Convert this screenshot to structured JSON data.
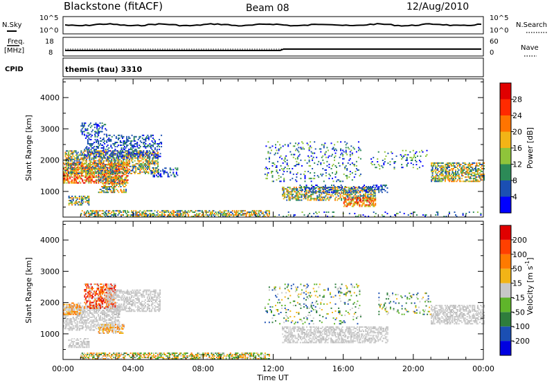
{
  "header": {
    "station": "Blackstone (fitACF)",
    "beam": "Beam 08",
    "date": "12/Aug/2010"
  },
  "status_panels": {
    "nsky_label": "N.Sky",
    "nsearch_label": "N.Search",
    "noise_ticks_left": [
      "10^5",
      "10^0"
    ],
    "noise_ticks_right": [
      "10^5",
      "10^0"
    ],
    "freq_label": "Freq.",
    "freq_unit": "[MHz]",
    "freq_ticks": [
      "18",
      "8"
    ],
    "nave_label": "Nave",
    "nave_ticks": [
      "60",
      "0"
    ],
    "cpid_label": "CPID",
    "cpid_value": "themis (tau) 3310"
  },
  "chart_data": [
    {
      "type": "heatmap",
      "name": "power",
      "ylabel": "Slant Range [km]",
      "xlabel": "Time UT",
      "yticks": [
        "1000",
        "2000",
        "3000",
        "4000"
      ],
      "ylim": [
        180,
        4600
      ],
      "xticks": [
        "00:00",
        "04:00",
        "08:00",
        "12:00",
        "16:00",
        "20:00",
        "00:00"
      ],
      "xlim_hours": [
        0,
        24
      ],
      "colorbar": {
        "label": "Power [dB]",
        "ticks": [
          "4",
          "8",
          "12",
          "16",
          "20",
          "24",
          "28"
        ],
        "colors": [
          "#0000ff",
          "#1b4fb3",
          "#2c8a57",
          "#8fc43a",
          "#f2b416",
          "#ff7400",
          "#ff2a00",
          "#e00000"
        ]
      },
      "regions": [
        {
          "t0": 0.0,
          "t1": 3.7,
          "r0": 1250,
          "r1": 1900,
          "level": "high"
        },
        {
          "t0": 0.1,
          "t1": 5.4,
          "r0": 1550,
          "r1": 2300,
          "level": "mid"
        },
        {
          "t0": 1.2,
          "t1": 5.6,
          "r0": 2050,
          "r1": 2800,
          "level": "low"
        },
        {
          "t0": 1.0,
          "t1": 2.5,
          "r0": 2800,
          "r1": 3200,
          "level": "low"
        },
        {
          "t0": 0.3,
          "t1": 1.5,
          "r0": 550,
          "r1": 850,
          "level": "mid"
        },
        {
          "t0": 2.0,
          "t1": 3.6,
          "r0": 950,
          "r1": 1450,
          "level": "mid"
        },
        {
          "t0": 5.0,
          "t1": 6.5,
          "r0": 1450,
          "r1": 1750,
          "level": "low"
        },
        {
          "t0": 1.0,
          "t1": 11.8,
          "r0": 180,
          "r1": 400,
          "level": "mid"
        },
        {
          "t0": 11.5,
          "t1": 17.0,
          "r0": 1300,
          "r1": 2600,
          "level": "sparse"
        },
        {
          "t0": 12.5,
          "t1": 17.8,
          "r0": 700,
          "r1": 1150,
          "level": "mid"
        },
        {
          "t0": 13.5,
          "t1": 18.5,
          "r0": 950,
          "r1": 1200,
          "level": "low"
        },
        {
          "t0": 16.0,
          "t1": 17.8,
          "r0": 500,
          "r1": 800,
          "level": "high"
        },
        {
          "t0": 17.5,
          "t1": 21.0,
          "r0": 1700,
          "r1": 2300,
          "level": "sparse"
        },
        {
          "t0": 21.0,
          "t1": 24.0,
          "r0": 1300,
          "r1": 1900,
          "level": "mid"
        },
        {
          "t0": 12.0,
          "t1": 24.0,
          "r0": 180,
          "r1": 350,
          "level": "sparse"
        }
      ]
    },
    {
      "type": "heatmap",
      "name": "velocity",
      "ylabel": "Slant Range [km]",
      "xlabel": "Time UT",
      "yticks": [
        "1000",
        "2000",
        "3000",
        "4000"
      ],
      "ylim": [
        180,
        4600
      ],
      "xticks": [
        "00:00",
        "04:00",
        "08:00",
        "12:00",
        "16:00",
        "20:00",
        "00:00"
      ],
      "xlim_hours": [
        0,
        24
      ],
      "colorbar": {
        "label": "Velocity [m s",
        "label_sup": "-1",
        "label_tail": "]",
        "ticks": [
          "200",
          "100",
          "50",
          "15",
          "-15",
          "-50",
          "-100",
          "-200"
        ],
        "colors": [
          "#0000e0",
          "#1b4fb3",
          "#2e7d3c",
          "#5fb52a",
          "#c8c8c8",
          "#f2b416",
          "#ff7a00",
          "#ff4000",
          "#e00000"
        ]
      },
      "regions": [
        {
          "t0": 0.0,
          "t1": 3.2,
          "r0": 1100,
          "r1": 1900,
          "level": "gray"
        },
        {
          "t0": 1.2,
          "t1": 3.0,
          "r0": 1800,
          "r1": 2600,
          "level": "red"
        },
        {
          "t0": 2.5,
          "t1": 5.5,
          "r0": 1700,
          "r1": 2400,
          "level": "gray"
        },
        {
          "t0": 0.0,
          "t1": 1.0,
          "r0": 1600,
          "r1": 2000,
          "level": "orange"
        },
        {
          "t0": 2.0,
          "t1": 3.5,
          "r0": 1000,
          "r1": 1300,
          "level": "orange"
        },
        {
          "t0": 0.3,
          "t1": 1.5,
          "r0": 550,
          "r1": 850,
          "level": "gray"
        },
        {
          "t0": 1.0,
          "t1": 11.8,
          "r0": 180,
          "r1": 400,
          "level": "mixlow"
        },
        {
          "t0": 11.5,
          "t1": 17.0,
          "r0": 1300,
          "r1": 2600,
          "level": "sparse"
        },
        {
          "t0": 12.5,
          "t1": 18.5,
          "r0": 700,
          "r1": 1200,
          "level": "gray"
        },
        {
          "t0": 21.0,
          "t1": 24.0,
          "r0": 1300,
          "r1": 1900,
          "level": "gray"
        },
        {
          "t0": 18.0,
          "t1": 21.0,
          "r0": 1600,
          "r1": 2300,
          "level": "sparse"
        }
      ]
    }
  ],
  "colors": {
    "axis": "#000000",
    "trace": "#000000"
  }
}
